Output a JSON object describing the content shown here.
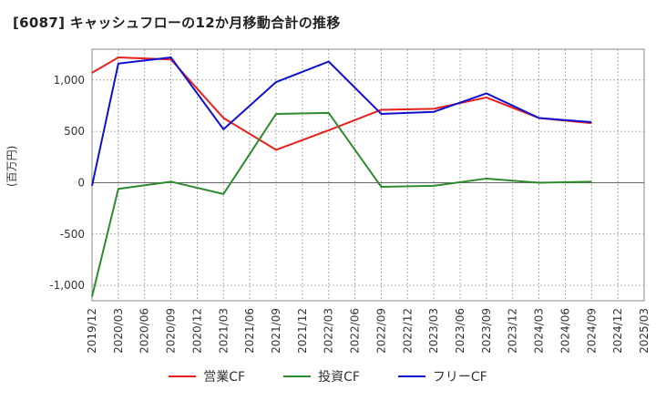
{
  "chart_data": {
    "type": "line",
    "title": "[6087]  キャッシュフローの12か月移動合計の推移",
    "ylabel": "(百万円)",
    "xlabel": "",
    "ylim": [
      -1150,
      1300
    ],
    "yticks": [
      -1000,
      -500,
      0,
      500,
      1000
    ],
    "ytick_labels": [
      "-1,000",
      "-500",
      "0",
      "500",
      "1,000"
    ],
    "categories": [
      "2019/12",
      "2020/03",
      "2020/06",
      "2020/09",
      "2020/12",
      "2021/03",
      "2021/06",
      "2021/09",
      "2021/12",
      "2022/03",
      "2022/06",
      "2022/09",
      "2022/12",
      "2023/03",
      "2023/06",
      "2023/09",
      "2023/12",
      "2024/03",
      "2024/06",
      "2024/09",
      "2024/12",
      "2025/03"
    ],
    "grid": true,
    "series": [
      {
        "name": "営業CF",
        "color": "#e8201c",
        "values": [
          1070,
          1220,
          1210,
          1200,
          null,
          630,
          null,
          320,
          null,
          510,
          null,
          710,
          null,
          720,
          null,
          830,
          null,
          630,
          null,
          580,
          null,
          null
        ]
      },
      {
        "name": "投資CF",
        "color": "#2e8b2e",
        "values": [
          -1110,
          -60,
          null,
          10,
          null,
          -110,
          null,
          670,
          null,
          680,
          null,
          -40,
          null,
          -30,
          null,
          40,
          null,
          0,
          null,
          10,
          null,
          null
        ]
      },
      {
        "name": "フリーCF",
        "color": "#1010d0",
        "values": [
          -30,
          1160,
          null,
          1220,
          null,
          520,
          null,
          980,
          null,
          1180,
          null,
          670,
          null,
          690,
          null,
          870,
          null,
          630,
          null,
          590,
          null,
          null
        ]
      }
    ],
    "legend_position": "bottom-center"
  }
}
